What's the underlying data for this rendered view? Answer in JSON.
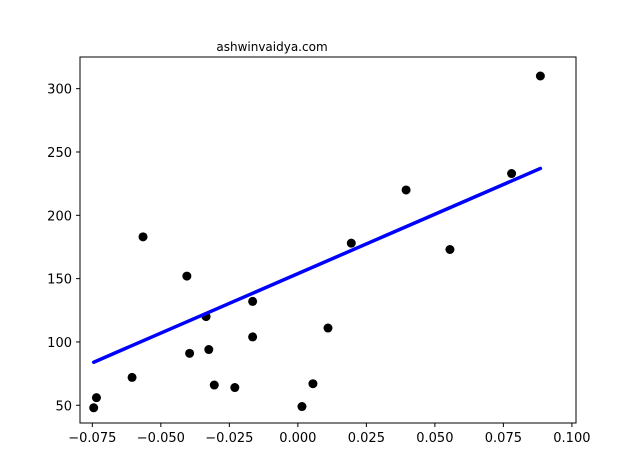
{
  "chart_data": {
    "type": "scatter",
    "title": "ashwinvaidya.com",
    "xlabel": "",
    "ylabel": "",
    "xlim": [
      -0.0795,
      0.1015
    ],
    "ylim": [
      36,
      325
    ],
    "grid": false,
    "x_ticks": [
      -0.075,
      -0.05,
      -0.025,
      0.0,
      0.025,
      0.05,
      0.075,
      0.1
    ],
    "x_tick_labels": [
      "−0.075",
      "−0.050",
      "−0.025",
      "0.000",
      "0.025",
      "0.050",
      "0.075",
      "0.100"
    ],
    "y_ticks": [
      50,
      100,
      150,
      200,
      250,
      300
    ],
    "y_tick_labels": [
      "50",
      "100",
      "150",
      "200",
      "250",
      "300"
    ],
    "points": {
      "color": "#000000",
      "x": [
        -0.0745,
        -0.0735,
        -0.0605,
        -0.0565,
        -0.0405,
        -0.0395,
        -0.0335,
        -0.0325,
        -0.0305,
        -0.023,
        -0.0165,
        -0.0165,
        0.0015,
        0.0055,
        0.011,
        0.0195,
        0.0395,
        0.0555,
        0.078,
        0.0885
      ],
      "y": [
        48,
        56,
        72,
        183,
        152,
        91,
        120,
        94,
        66,
        64,
        104,
        132,
        49,
        67,
        111,
        178,
        220,
        173,
        233,
        310
      ]
    },
    "regression_line": {
      "color": "#0000ff",
      "x": [
        -0.0745,
        0.0885
      ],
      "y": [
        84,
        237
      ]
    }
  }
}
